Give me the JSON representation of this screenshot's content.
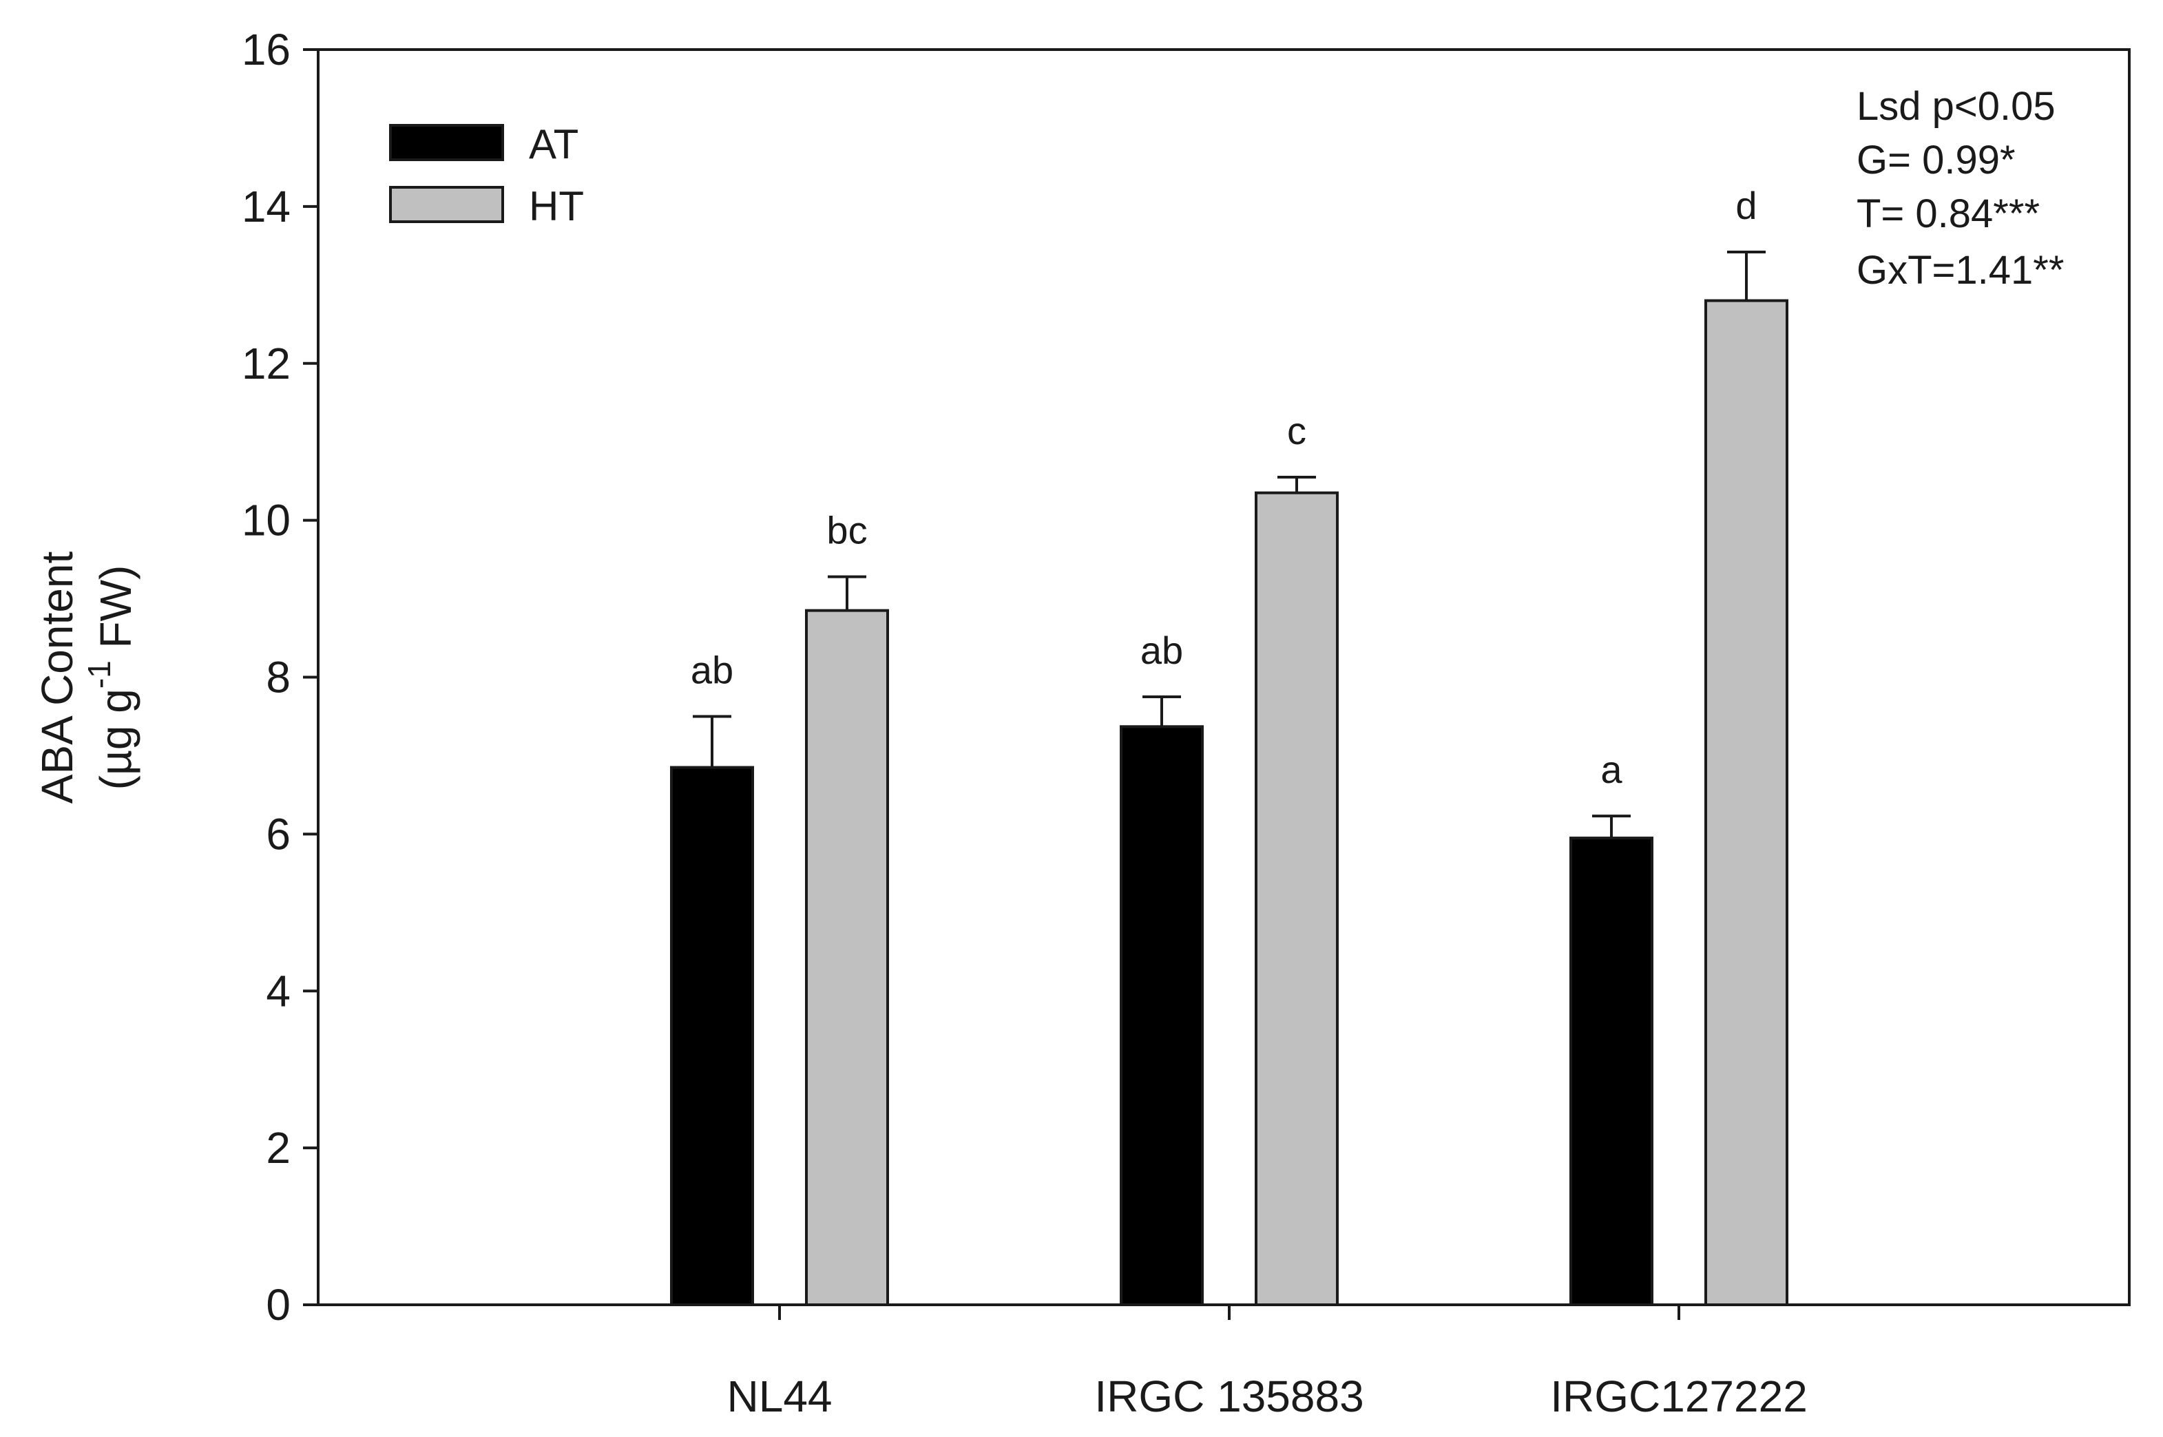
{
  "chart_data": {
    "type": "bar",
    "title": "",
    "xlabel": "",
    "ylabel_line1": "ABA Content",
    "ylabel_line2_prefix": "(µg g",
    "ylabel_line2_sup": "-1",
    "ylabel_line2_suffix": " FW)",
    "ylim": [
      0,
      16
    ],
    "yticks": [
      0,
      2,
      4,
      6,
      8,
      10,
      12,
      14,
      16
    ],
    "ytick_labels": [
      "0",
      "2",
      "4",
      "6",
      "8",
      "10",
      "12",
      "14",
      "16"
    ],
    "categories": [
      "NL44",
      "IRGC 135883",
      "IRGC127222"
    ],
    "series": [
      {
        "name": "AT",
        "color": "#000000",
        "values": [
          6.85,
          7.37,
          5.95
        ],
        "errors": [
          0.65,
          0.38,
          0.28
        ],
        "significance": [
          "ab",
          "ab",
          "a"
        ]
      },
      {
        "name": "HT",
        "color": "#c0c0c0",
        "values": [
          8.85,
          10.35,
          12.8
        ],
        "errors": [
          0.43,
          0.2,
          0.62
        ],
        "significance": [
          "bc",
          "c",
          "d"
        ]
      }
    ],
    "legend_position": "top-left",
    "stats_annotation": [
      "Lsd p<0.05",
      "G= 0.99*",
      "T= 0.84***",
      "GxT=1.41**"
    ],
    "grid": false
  }
}
